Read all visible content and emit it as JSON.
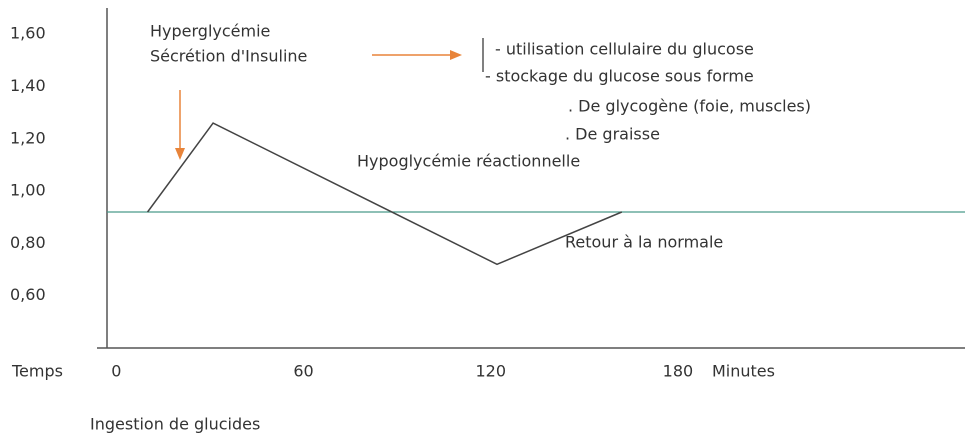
{
  "chart_data": {
    "type": "line",
    "x_label": "Temps",
    "x_unit": "Minutes",
    "caption": "Ingestion de glucides",
    "x": [
      10,
      31,
      122,
      162
    ],
    "values": [
      0.92,
      1.26,
      0.72,
      0.92
    ],
    "color": "#444444",
    "reference": {
      "value": 0.92,
      "color": "#4a9a8a"
    },
    "xlim": [
      -3,
      272
    ],
    "ylim": [
      0.4,
      1.7
    ],
    "xticks": [
      0,
      60,
      120,
      180
    ],
    "yticks": [
      {
        "value": 1.6,
        "label": "1,60"
      },
      {
        "value": 1.4,
        "label": "1,40"
      },
      {
        "value": 1.2,
        "label": "1,20"
      },
      {
        "value": 1.0,
        "label": "1,00"
      },
      {
        "value": 0.8,
        "label": "0,80"
      },
      {
        "value": 0.6,
        "label": "0,60"
      }
    ],
    "grid": false,
    "annotations": [
      "Hyperglycémie",
      "Sécrétion d'Insuline",
      "- utilisation cellulaire du glucose",
      "- stockage du glucose sous forme",
      ". De glycogène (foie, muscles)",
      ". De graisse",
      "Hypoglycémie réactionnelle",
      "Retour à la normale"
    ]
  }
}
